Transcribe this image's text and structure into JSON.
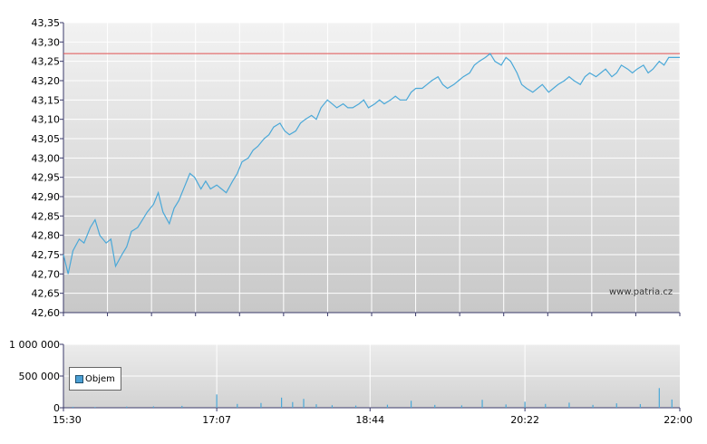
{
  "chart_data": [
    {
      "type": "line",
      "name": "price",
      "ylim": [
        42.6,
        43.35
      ],
      "y_ticks": [
        "43,35",
        "43,30",
        "43,25",
        "43,20",
        "43,15",
        "43,10",
        "43,05",
        "43,00",
        "42,95",
        "42,90",
        "42,85",
        "42,80",
        "42,75",
        "42,70",
        "42,65",
        "42,60"
      ],
      "reference_line": 43.27,
      "watermark": "www.patria.cz",
      "grid": true,
      "colors": {
        "line": "#4aa8d8",
        "reference": "#e05050",
        "grid": "#ffffff"
      },
      "series": [
        {
          "x": [
            "15:30",
            "15:33",
            "15:36",
            "15:40",
            "15:43",
            "15:47",
            "15:50",
            "15:53",
            "15:57",
            "16:00",
            "16:03",
            "16:07",
            "16:10",
            "16:13",
            "16:17",
            "16:20",
            "16:23",
            "16:27",
            "16:30",
            "16:33",
            "16:37",
            "16:40",
            "16:43",
            "16:47",
            "16:50",
            "16:53",
            "16:57",
            "17:00",
            "17:03",
            "17:07",
            "17:10",
            "17:13",
            "17:17",
            "17:20",
            "17:23",
            "17:27",
            "17:30",
            "17:33",
            "17:37",
            "17:40",
            "17:43",
            "17:47",
            "17:50",
            "17:53",
            "17:57",
            "18:00",
            "18:03",
            "18:07",
            "18:10",
            "18:13",
            "18:17",
            "18:20",
            "18:23",
            "18:27",
            "18:30",
            "18:33",
            "18:37",
            "18:40",
            "18:43",
            "18:47",
            "18:50",
            "18:53",
            "18:57",
            "19:00",
            "19:03",
            "19:07",
            "19:10",
            "19:13",
            "19:17",
            "19:20",
            "19:23",
            "19:27",
            "19:30",
            "19:33",
            "19:37",
            "19:40",
            "19:43",
            "19:47",
            "19:50",
            "19:53",
            "19:57",
            "20:00",
            "20:03",
            "20:07",
            "20:10",
            "20:13",
            "20:17",
            "20:20",
            "20:23",
            "20:27",
            "20:30",
            "20:33",
            "20:37",
            "20:40",
            "20:43",
            "20:47",
            "20:50",
            "20:53",
            "20:57",
            "21:00",
            "21:03",
            "21:07",
            "21:10",
            "21:13",
            "21:17",
            "21:20",
            "21:23",
            "21:27",
            "21:30",
            "21:33",
            "21:37",
            "21:40",
            "21:43",
            "21:47",
            "21:50",
            "21:53",
            "21:57",
            "22:00"
          ],
          "values": [
            42.75,
            42.7,
            42.76,
            42.79,
            42.78,
            42.82,
            42.84,
            42.8,
            42.78,
            42.79,
            42.72,
            42.75,
            42.77,
            42.81,
            42.82,
            42.84,
            42.86,
            42.88,
            42.91,
            42.86,
            42.83,
            42.87,
            42.89,
            42.93,
            42.96,
            42.95,
            42.92,
            42.94,
            42.92,
            42.93,
            42.92,
            42.91,
            42.94,
            42.96,
            42.99,
            43.0,
            43.02,
            43.03,
            43.05,
            43.06,
            43.08,
            43.09,
            43.07,
            43.06,
            43.07,
            43.09,
            43.1,
            43.11,
            43.1,
            43.13,
            43.15,
            43.14,
            43.13,
            43.14,
            43.13,
            43.13,
            43.14,
            43.15,
            43.13,
            43.14,
            43.15,
            43.14,
            43.15,
            43.16,
            43.15,
            43.15,
            43.17,
            43.18,
            43.18,
            43.19,
            43.2,
            43.21,
            43.19,
            43.18,
            43.19,
            43.2,
            43.21,
            43.22,
            43.24,
            43.25,
            43.26,
            43.27,
            43.25,
            43.24,
            43.26,
            43.25,
            43.22,
            43.19,
            43.18,
            43.17,
            43.18,
            43.19,
            43.17,
            43.18,
            43.19,
            43.2,
            43.21,
            43.2,
            43.19,
            43.21,
            43.22,
            43.21,
            43.22,
            43.23,
            43.21,
            43.22,
            43.24,
            43.23,
            43.22,
            43.23,
            43.24,
            43.22,
            43.23,
            43.25,
            43.24,
            43.26,
            43.26,
            43.26
          ]
        }
      ]
    },
    {
      "type": "bar",
      "name": "volume",
      "ylim": [
        0,
        1000000
      ],
      "y_ticks": [
        "1 000 000",
        "500 000",
        "0"
      ],
      "x_ticks": [
        "15:30",
        "17:07",
        "18:44",
        "20:22",
        "22:00"
      ],
      "legend": "Objem",
      "legend_position": "bottom-left",
      "grid": true,
      "colors": {
        "bar": "#4aa8d8",
        "grid": "#ffffff"
      },
      "series": [
        {
          "name": "Objem",
          "x": [
            "15:36",
            "15:50",
            "16:10",
            "16:27",
            "16:45",
            "17:07",
            "17:20",
            "17:35",
            "17:48",
            "17:55",
            "18:02",
            "18:10",
            "18:20",
            "18:35",
            "18:55",
            "19:10",
            "19:25",
            "19:42",
            "19:55",
            "20:10",
            "20:22",
            "20:35",
            "20:50",
            "21:05",
            "21:20",
            "21:35",
            "21:47",
            "21:55"
          ],
          "values": [
            15000,
            12000,
            18000,
            22000,
            30000,
            210000,
            60000,
            75000,
            160000,
            90000,
            140000,
            55000,
            40000,
            35000,
            48000,
            110000,
            45000,
            38000,
            125000,
            52000,
            95000,
            60000,
            80000,
            45000,
            70000,
            58000,
            310000,
            130000
          ]
        }
      ]
    }
  ]
}
